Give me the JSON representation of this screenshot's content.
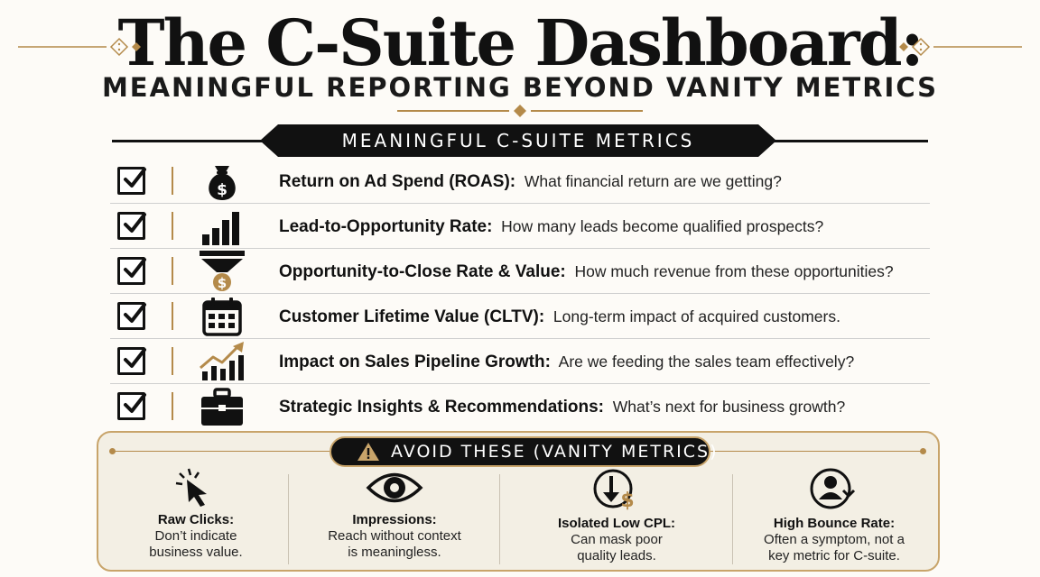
{
  "header": {
    "title": "The C-Suite Dashboard:",
    "subtitle": "MEANINGFUL REPORTING BEYOND VANITY METRICS"
  },
  "section": {
    "banner": "MEANINGFUL C-SUITE METRICS"
  },
  "metrics": [
    {
      "icon": "money-bag-icon",
      "label": "Return on Ad Spend (ROAS):",
      "desc": "What financial return are we getting?",
      "checked": true
    },
    {
      "icon": "bar-chart-icon",
      "label": "Lead-to-Opportunity Rate:",
      "desc": "How many leads become qualified prospects?",
      "checked": true
    },
    {
      "icon": "funnel-icon",
      "label": "Opportunity-to-Close Rate & Value:",
      "desc": "How much revenue from these opportunities?",
      "checked": true
    },
    {
      "icon": "calendar-icon",
      "label": "Customer Lifetime Value (CLTV):",
      "desc": "Long-term impact of acquired customers.",
      "checked": true
    },
    {
      "icon": "growth-chart-icon",
      "label": "Impact on Sales Pipeline Growth:",
      "desc": "Are we feeding the sales team effectively?",
      "checked": true
    },
    {
      "icon": "briefcase-icon",
      "label": "Strategic Insights & Recommendations:",
      "desc": "What’s next for business growth?",
      "checked": true
    }
  ],
  "avoid": {
    "banner": "AVOID THESE (VANITY METRICS)",
    "items": [
      {
        "icon": "cursor-click-icon",
        "title": "Raw Clicks:",
        "line1": "Don’t indicate",
        "line2": "business value."
      },
      {
        "icon": "eye-icon",
        "title": "Impressions:",
        "line1": "Reach without context",
        "line2": "is meaningless."
      },
      {
        "icon": "down-dollar-icon",
        "title": "Isolated Low CPL:",
        "line1": "Can mask poor",
        "line2": "quality leads."
      },
      {
        "icon": "user-bounce-icon",
        "title": "High Bounce Rate:",
        "line1": "Often a symptom, not a",
        "line2": "key metric for C-suite."
      }
    ]
  },
  "colors": {
    "accent_gold": "#b48a4a",
    "dark": "#111111",
    "panel_bg": "#f3efe4"
  }
}
